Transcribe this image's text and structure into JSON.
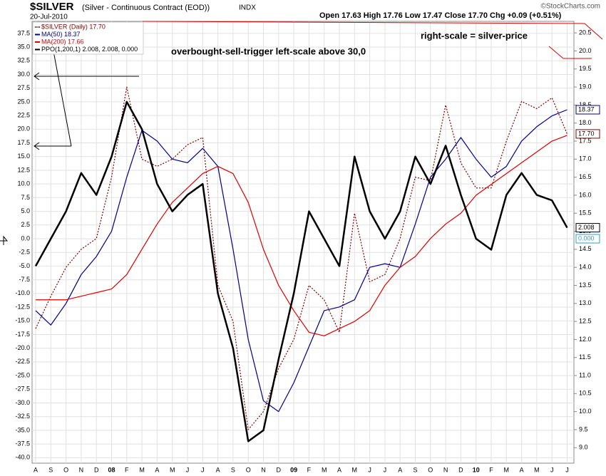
{
  "chart_data": {
    "type": "line",
    "title": "$SILVER",
    "subtitle": "(Silver - Continuous Contract (EOD))",
    "exchange": "INDX",
    "date": "20-Jul-2010",
    "quote": "Open 17.63 High 17.76 Low 17.47 Close 17.70 Chg +0.09 (+0.51%)",
    "credit": "©StockCharts.com",
    "annotations": [
      "overbought-sell-trigger   left-scale above 30,0",
      "right-scale = silver-price"
    ],
    "categories": [
      "A",
      "S",
      "O",
      "N",
      "D",
      "08",
      "F",
      "M",
      "A",
      "M",
      "J",
      "J",
      "A",
      "S",
      "O",
      "N",
      "D",
      "09",
      "F",
      "M",
      "A",
      "M",
      "J",
      "J",
      "A",
      "S",
      "O",
      "N",
      "D",
      "10",
      "F",
      "M",
      "A",
      "M",
      "J",
      "J"
    ],
    "series": [
      {
        "name": "$SILVER (Daily) 17.70",
        "color": "#800000",
        "axis": "y2",
        "style": "dotted",
        "badge": "17.70",
        "values": [
          12.3,
          13.2,
          14.0,
          14.5,
          14.8,
          16.5,
          19.0,
          17.0,
          16.8,
          17.0,
          17.4,
          17.6,
          13.5,
          12.5,
          9.5,
          10.0,
          11.2,
          12.0,
          13.5,
          13.1,
          12.2,
          15.5,
          13.6,
          13.8,
          14.8,
          16.5,
          16.4,
          18.5,
          16.9,
          16.2,
          16.2,
          17.5,
          18.6,
          18.4,
          18.7,
          17.7
        ]
      },
      {
        "name": "MA(50) 18.37",
        "color": "#00008b",
        "axis": "y2",
        "style": "solid",
        "badge": "18.37",
        "values": [
          12.8,
          12.4,
          13.0,
          13.8,
          14.3,
          15.0,
          16.5,
          17.8,
          17.5,
          17.0,
          16.9,
          17.3,
          16.8,
          14.5,
          12.0,
          10.3,
          10.0,
          10.8,
          11.8,
          12.8,
          12.9,
          13.1,
          14.0,
          14.1,
          14.0,
          15.2,
          16.5,
          17.0,
          17.6,
          17.0,
          16.5,
          16.8,
          17.5,
          17.9,
          18.2,
          18.37
        ]
      },
      {
        "name": "MA(200) 17.66",
        "color": "#e00000",
        "axis": "y2",
        "style": "solid",
        "values": [
          13.1,
          13.1,
          13.1,
          13.2,
          13.3,
          13.4,
          13.8,
          14.5,
          15.2,
          15.8,
          16.2,
          16.6,
          16.8,
          16.6,
          15.8,
          14.5,
          13.5,
          12.8,
          12.2,
          12.1,
          12.3,
          12.5,
          12.8,
          13.5,
          14.0,
          14.3,
          14.8,
          15.2,
          15.5,
          16.0,
          16.3,
          16.6,
          16.9,
          17.2,
          17.5,
          17.66
        ]
      },
      {
        "name": "PPO(1,200,1) 2.008, 2.008, 0.000",
        "color": "#000000",
        "axis": "y",
        "style": "thick",
        "badge": "2.008",
        "values": [
          -5,
          0,
          5,
          12,
          8,
          15,
          25,
          20,
          10,
          5,
          8,
          10,
          -10,
          -20,
          -37,
          -35,
          -22,
          -10,
          5,
          0,
          -5,
          15,
          5,
          0,
          5,
          15,
          10,
          17,
          8,
          0,
          -2,
          8,
          12,
          8,
          7,
          2.008
        ]
      }
    ],
    "signal_badge": "0.000",
    "ylim": [
      -41,
      39.7
    ],
    "yticks": [
      {
        "value": 37.5,
        "label": "37.5"
      },
      {
        "value": 35,
        "label": "35.0"
      },
      {
        "value": 32.5,
        "label": "32.5"
      },
      {
        "value": 30,
        "label": "30.0"
      },
      {
        "value": 27.5,
        "label": "27.5"
      },
      {
        "value": 25,
        "label": "25.0"
      },
      {
        "value": 22.5,
        "label": "22.5"
      },
      {
        "value": 20,
        "label": "20.0"
      },
      {
        "value": 17.5,
        "label": "17.5"
      },
      {
        "value": 15,
        "label": "15.0"
      },
      {
        "value": 12.5,
        "label": "12.5"
      },
      {
        "value": 10,
        "label": "10.0"
      },
      {
        "value": 7.5,
        "label": "7.5"
      },
      {
        "value": 5,
        "label": "5.0"
      },
      {
        "value": 2.5,
        "label": "2.5"
      },
      {
        "value": 0,
        "label": "0.0"
      },
      {
        "value": -2.5,
        "label": "-2.5"
      },
      {
        "value": -5,
        "label": "-5.0"
      },
      {
        "value": -7.5,
        "label": "-7.5"
      },
      {
        "value": -10,
        "label": "-10.0"
      },
      {
        "value": -12.5,
        "label": "-12.5"
      },
      {
        "value": -15,
        "label": "-15.0"
      },
      {
        "value": -17.5,
        "label": "-17.5"
      },
      {
        "value": -20,
        "label": "-20.0"
      },
      {
        "value": -22.5,
        "label": "-22.5"
      },
      {
        "value": -25,
        "label": "-25.0"
      },
      {
        "value": -27.5,
        "label": "-27.5"
      },
      {
        "value": -30,
        "label": "-30.0"
      },
      {
        "value": -32.5,
        "label": "-32.5"
      },
      {
        "value": -35,
        "label": "-35.0"
      },
      {
        "value": -37.5,
        "label": "-37.5"
      },
      {
        "value": -40,
        "label": "-40.0"
      }
    ],
    "y2lim": [
      8.57,
      20.82
    ],
    "y2ticks": [
      {
        "value": 20.5,
        "label": "20.5"
      },
      {
        "value": 20,
        "label": "20.0"
      },
      {
        "value": 19.5,
        "label": "19.5"
      },
      {
        "value": 19,
        "label": "19.0"
      },
      {
        "value": 18.5,
        "label": "18.5"
      },
      {
        "value": 18,
        "label": "18.0"
      },
      {
        "value": 17.5,
        "label": "17.5"
      },
      {
        "value": 17,
        "label": "17.0"
      },
      {
        "value": 16.5,
        "label": "16.5"
      },
      {
        "value": 16,
        "label": "16.0"
      },
      {
        "value": 15.5,
        "label": "15.5"
      },
      {
        "value": 15,
        "label": "15.0"
      },
      {
        "value": 14.5,
        "label": "14.5"
      },
      {
        "value": 14,
        "label": "14.0"
      },
      {
        "value": 13.5,
        "label": "13.5"
      },
      {
        "value": 13,
        "label": "13.0"
      },
      {
        "value": 12.5,
        "label": "12.5"
      },
      {
        "value": 12,
        "label": "12.0"
      },
      {
        "value": 11.5,
        "label": "11.5"
      },
      {
        "value": 11,
        "label": "11.0"
      },
      {
        "value": 10.5,
        "label": "10.5"
      },
      {
        "value": 10,
        "label": "10.0"
      },
      {
        "value": 9.5,
        "label": "9.5"
      },
      {
        "value": 9,
        "label": "9.0"
      }
    ],
    "grid": true
  }
}
